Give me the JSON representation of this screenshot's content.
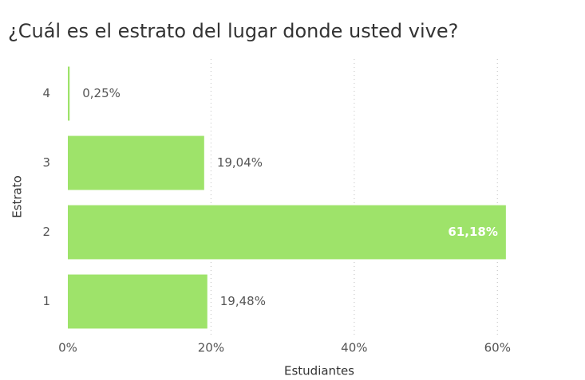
{
  "chart_data": {
    "type": "hbar",
    "title": "¿Cuál es el estrato del lugar donde usted vive?",
    "x_label": "Estudiantes",
    "y_label": "Estrato",
    "categories": [
      "4",
      "3",
      "2",
      "1"
    ],
    "values": [
      0.25,
      19.04,
      61.18,
      19.48
    ],
    "value_labels": [
      "0,25%",
      "19,04%",
      "61,18%",
      "19,48%"
    ],
    "color": "#9ee36a",
    "xlim": [
      0,
      70
    ],
    "xticks": [
      {
        "value": 0,
        "label": "0%"
      },
      {
        "value": 20,
        "label": "20%"
      },
      {
        "value": 40,
        "label": "40%"
      },
      {
        "value": 60,
        "label": "60%"
      }
    ],
    "grid": true
  }
}
